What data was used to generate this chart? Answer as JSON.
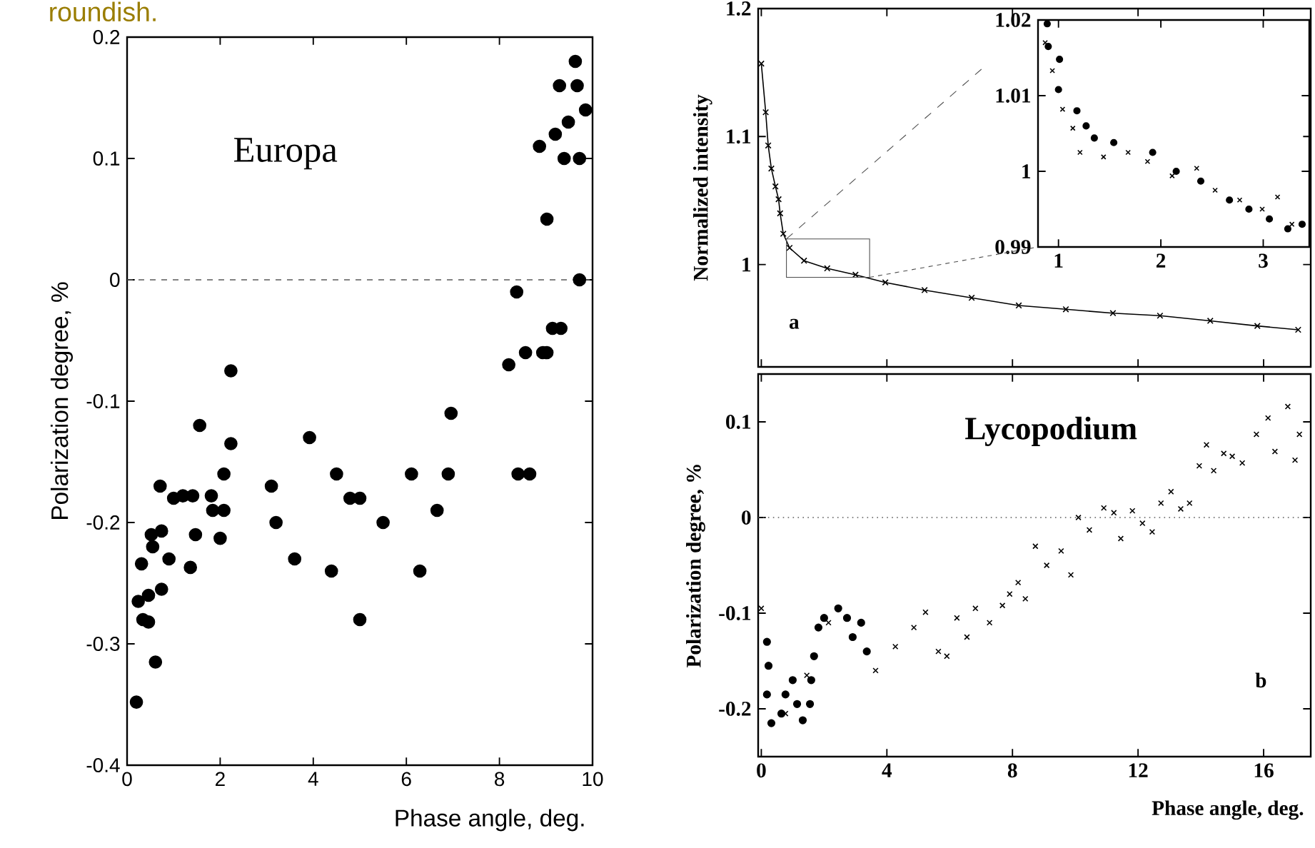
{
  "chart_data": [
    {
      "type": "scatter",
      "title": "Europa",
      "xlabel": "Phase angle, deg.",
      "ylabel": "Polarization degree, %",
      "marker": "circle",
      "annotations": [
        "roundish."
      ],
      "xlim": [
        0,
        10
      ],
      "ylim": [
        -0.4,
        0.2
      ],
      "xticks": [
        0,
        2,
        4,
        6,
        8,
        10
      ],
      "yticks": [
        -0.4,
        -0.3,
        -0.2,
        -0.1,
        0,
        0.1,
        0.2
      ],
      "ref_lines": [
        {
          "axis": "y",
          "value": 0,
          "line_style": "dashed"
        }
      ],
      "series": [
        {
          "color": "#000000",
          "x": [
            9.63,
            9.29,
            9.67,
            9.85,
            9.48,
            9.2,
            8.86,
            9.39,
            9.72,
            9.02,
            9.72,
            8.37,
            9.14,
            9.32,
            8.56,
            8.93,
            9.02,
            8.2,
            2.23,
            6.96,
            1.56,
            2.23,
            3.92,
            0.71,
            1.0,
            1.2,
            1.41,
            1.81,
            1.84,
            2.08,
            2.08,
            1.47,
            2.0,
            0.74,
            0.52,
            0.55,
            0.31,
            0.9,
            1.36,
            0.24,
            0.46,
            0.74,
            0.34,
            0.46,
            0.61,
            0.2,
            3.1,
            3.2,
            3.6,
            4.39,
            4.5,
            4.79,
            5.0,
            5.0,
            5.5,
            6.11,
            6.29,
            6.66,
            6.9,
            8.4,
            8.65
          ],
          "values": [
            0.18,
            0.16,
            0.16,
            0.14,
            0.13,
            0.12,
            0.11,
            0.1,
            0.1,
            0.05,
            0.0,
            -0.01,
            -0.04,
            -0.04,
            -0.06,
            -0.06,
            -0.06,
            -0.07,
            -0.075,
            -0.11,
            -0.12,
            -0.135,
            -0.13,
            -0.17,
            -0.18,
            -0.178,
            -0.178,
            -0.178,
            -0.19,
            -0.16,
            -0.19,
            -0.21,
            -0.213,
            -0.207,
            -0.21,
            -0.22,
            -0.234,
            -0.23,
            -0.237,
            -0.265,
            -0.26,
            -0.255,
            -0.28,
            -0.282,
            -0.315,
            -0.348,
            -0.17,
            -0.2,
            -0.23,
            -0.24,
            -0.16,
            -0.18,
            -0.18,
            -0.28,
            -0.2,
            -0.16,
            -0.24,
            -0.19,
            -0.16,
            -0.16,
            -0.16
          ]
        }
      ]
    },
    {
      "type": "line",
      "ylabel": "Normalized intensity",
      "marker": "cross",
      "annotations": [
        "a"
      ],
      "tick_labels": "y",
      "xlim": [
        -0.1,
        17.5
      ],
      "ylim": [
        0.92,
        1.2
      ],
      "xticks": [
        0,
        4,
        8,
        12,
        16
      ],
      "yticks": [
        1,
        1.1,
        1.2
      ],
      "series": [
        {
          "color": "#000000",
          "x": [
            0.0,
            0.14,
            0.22,
            0.32,
            0.45,
            0.55,
            0.6,
            0.7,
            0.9,
            1.36,
            2.1,
            3.0,
            3.95,
            5.2,
            6.7,
            8.2,
            9.7,
            11.2,
            12.7,
            14.3,
            15.8,
            17.1
          ],
          "values": [
            1.157,
            1.119,
            1.093,
            1.075,
            1.061,
            1.051,
            1.04,
            1.024,
            1.013,
            1.003,
            0.997,
            0.992,
            0.986,
            0.98,
            0.974,
            0.968,
            0.965,
            0.962,
            0.96,
            0.956,
            0.952,
            0.949
          ]
        }
      ]
    },
    {
      "type": "scatter",
      "xlim": [
        0.8,
        3.45
      ],
      "ylim": [
        0.99,
        1.02
      ],
      "xticks": [
        1,
        2,
        3
      ],
      "yticks": [
        0.99,
        1,
        1.01,
        1.02
      ],
      "series": [
        {
          "color": "#000000",
          "marker": "circle",
          "x": [
            0.89,
            0.9,
            1.01,
            1.0,
            1.18,
            1.27,
            1.35,
            1.54,
            1.92,
            2.15,
            2.39,
            2.67,
            2.86,
            3.06,
            3.24,
            3.38
          ],
          "values": [
            1.0195,
            1.0165,
            1.0148,
            1.0108,
            1.008,
            1.006,
            1.0044,
            1.0038,
            1.0025,
            1.0,
            0.9987,
            0.9962,
            0.995,
            0.9937,
            0.9924,
            0.993
          ]
        },
        {
          "color": "#000000",
          "marker": "cross",
          "x": [
            0.87,
            0.94,
            1.04,
            1.14,
            1.21,
            1.44,
            1.68,
            1.87,
            2.11,
            2.35,
            2.53,
            2.77,
            2.99,
            3.14,
            3.28
          ],
          "values": [
            1.017,
            1.0133,
            1.0082,
            1.0057,
            1.0025,
            1.0019,
            1.0025,
            1.0013,
            0.9994,
            1.0004,
            0.9975,
            0.9962,
            0.995,
            0.9966,
            0.993
          ]
        }
      ]
    },
    {
      "type": "scatter",
      "title": "Lycopodium",
      "xlabel": "Phase angle, deg.",
      "ylabel": "Polarization degree, %",
      "annotations": [
        "b"
      ],
      "xlim": [
        -0.1,
        17.5
      ],
      "ylim": [
        -0.25,
        0.15
      ],
      "xticks": [
        0,
        4,
        8,
        12,
        16
      ],
      "yticks": [
        -0.2,
        -0.1,
        0,
        0.1
      ],
      "ref_lines": [
        {
          "axis": "y",
          "value": 0,
          "line_style": "dotted"
        }
      ],
      "series": [
        {
          "color": "#000000",
          "marker": "circle",
          "x": [
            0.18,
            0.23,
            0.18,
            0.32,
            0.64,
            0.77,
            1.0,
            1.14,
            1.32,
            1.55,
            1.59,
            1.68,
            1.82,
            2.0,
            2.45,
            2.73,
            2.91,
            3.18,
            3.36
          ],
          "values": [
            -0.13,
            -0.155,
            -0.185,
            -0.215,
            -0.205,
            -0.185,
            -0.17,
            -0.195,
            -0.212,
            -0.195,
            -0.17,
            -0.145,
            -0.115,
            -0.105,
            -0.095,
            -0.105,
            -0.125,
            -0.11,
            -0.14
          ]
        },
        {
          "color": "#000000",
          "marker": "cross",
          "x": [
            0.0,
            0.77,
            1.45,
            2.14,
            3.64,
            4.27,
            4.86,
            5.23,
            5.64,
            5.91,
            6.23,
            6.55,
            6.82,
            7.27,
            7.68,
            7.91,
            8.18,
            8.41,
            8.73,
            9.09,
            9.55,
            9.86,
            10.1,
            10.45,
            10.91,
            11.23,
            11.45,
            11.82,
            12.14,
            12.45,
            12.73,
            13.05,
            13.36,
            13.64,
            13.95,
            14.18,
            14.41,
            14.73,
            15.0,
            15.32,
            15.77,
            16.14,
            16.36,
            16.77,
            17.0,
            17.14
          ],
          "values": [
            -0.095,
            -0.205,
            -0.165,
            -0.11,
            -0.16,
            -0.135,
            -0.115,
            -0.099,
            -0.14,
            -0.145,
            -0.105,
            -0.125,
            -0.095,
            -0.11,
            -0.092,
            -0.08,
            -0.068,
            -0.085,
            -0.03,
            -0.05,
            -0.035,
            -0.06,
            0.0,
            -0.013,
            0.01,
            0.005,
            -0.022,
            0.007,
            -0.006,
            -0.015,
            0.015,
            0.027,
            0.009,
            0.015,
            0.054,
            0.076,
            0.049,
            0.067,
            0.064,
            0.057,
            0.087,
            0.104,
            0.069,
            0.116,
            0.06,
            0.087
          ]
        }
      ]
    }
  ]
}
